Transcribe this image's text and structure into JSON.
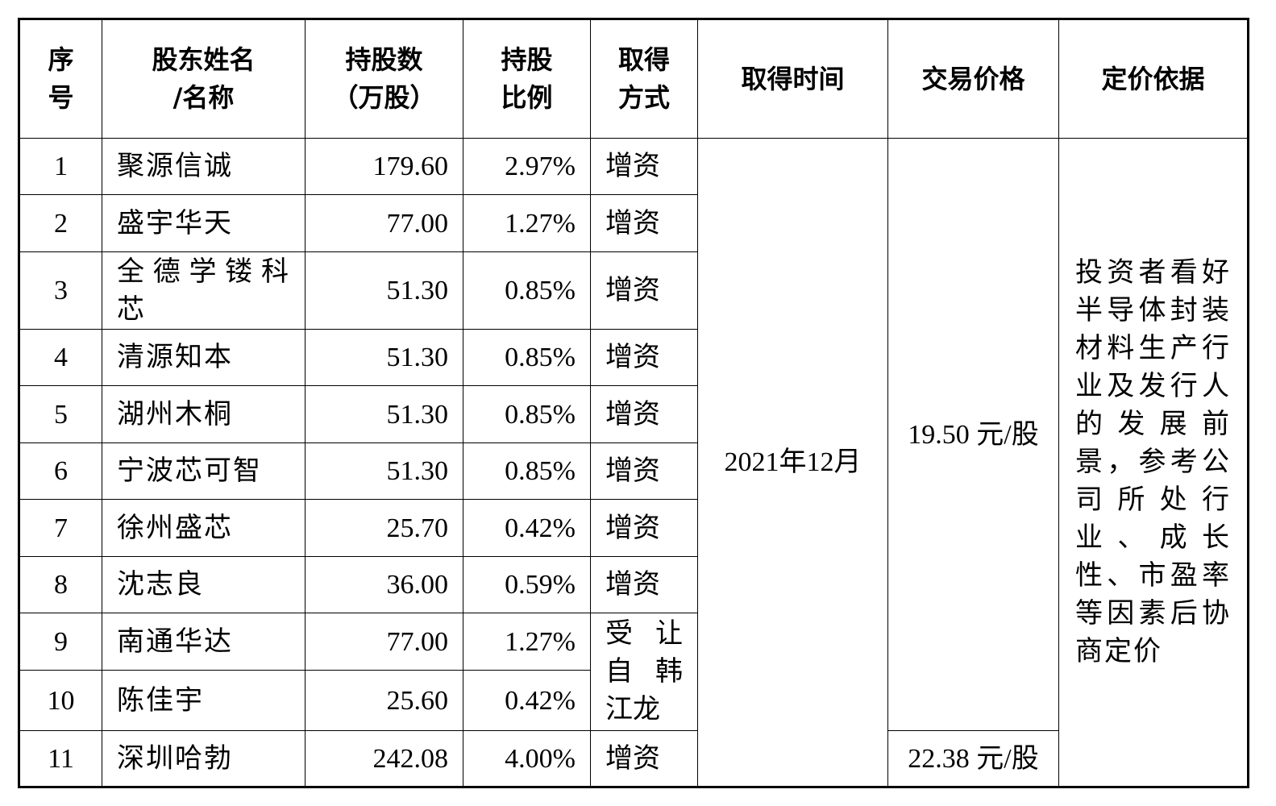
{
  "table": {
    "header": [
      "序\n号",
      "股东姓名\n/名称",
      "持股数\n（万股）",
      "持股\n比例",
      "取得\n方式",
      "取得时间",
      "交易价格",
      "定价依据"
    ],
    "rows": [
      [
        "1",
        "聚源信诚",
        "179.60",
        "2.97%",
        "增资"
      ],
      [
        "2",
        "盛宇华天",
        "77.00",
        "1.27%",
        "增资"
      ],
      [
        "3",
        "全德学镂科芯",
        "51.30",
        "0.85%",
        "增资"
      ],
      [
        "4",
        "清源知本",
        "51.30",
        "0.85%",
        "增资"
      ],
      [
        "5",
        "湖州木桐",
        "51.30",
        "0.85%",
        "增资"
      ],
      [
        "6",
        "宁波芯可智",
        "51.30",
        "0.85%",
        "增资"
      ],
      [
        "7",
        "徐州盛芯",
        "25.70",
        "0.42%",
        "增资"
      ],
      [
        "8",
        "沈志良",
        "36.00",
        "0.59%",
        "增资"
      ],
      [
        "9",
        "南通华达",
        "77.00",
        "1.27%",
        "受让自韩江龙"
      ],
      [
        "10",
        "陈佳宇",
        "25.60",
        "0.42%"
      ],
      [
        "11",
        "深圳哈勃",
        "242.08",
        "4.00%",
        "增资"
      ]
    ],
    "time": "2021年12月",
    "prices": [
      "19.50 元/股",
      "22.38 元/股"
    ],
    "basis": "投资者看好半导体封装材料生产行业及发行人的发展前景，参考公司所处行业、成长性、市盈率等因素后协商定价"
  }
}
